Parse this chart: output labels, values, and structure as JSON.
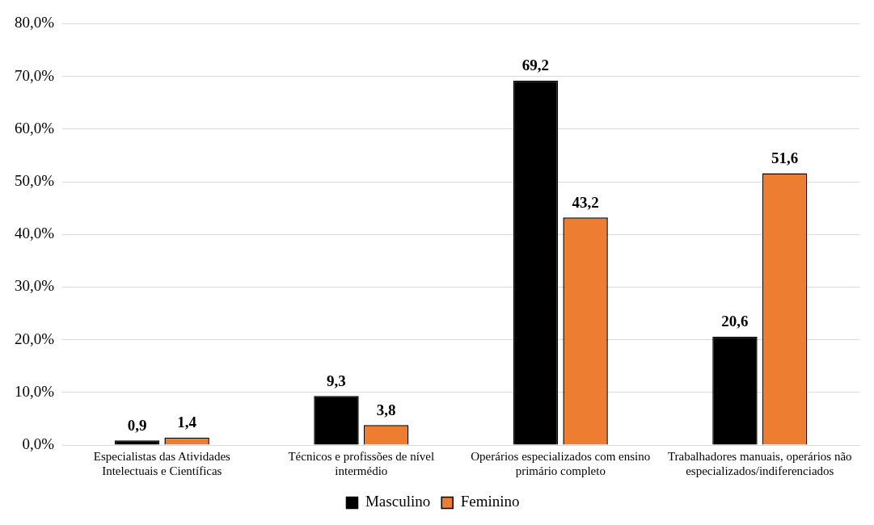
{
  "chart_data": {
    "type": "bar",
    "categories": [
      "Especialistas das Atividades Intelectuais e Científicas",
      "Técnicos e profissões de nível intermédio",
      "Operários especializados com ensino primário completo",
      "Trabalhadores manuais, operários não especializados/indiferenciados"
    ],
    "series": [
      {
        "name": "Masculino",
        "color": "#000000",
        "values": [
          0.9,
          9.3,
          69.2,
          20.6
        ],
        "value_labels": [
          "0,9",
          "9,3",
          "69,2",
          "20,6"
        ]
      },
      {
        "name": "Feminino",
        "color": "#ed7d31",
        "values": [
          1.4,
          3.8,
          43.2,
          51.6
        ],
        "value_labels": [
          "1,4",
          "3,8",
          "43,2",
          "51,6"
        ]
      }
    ],
    "ylim": [
      0,
      80
    ],
    "yticks": [
      {
        "value": 0,
        "label": "0,0%"
      },
      {
        "value": 10,
        "label": "10,0%"
      },
      {
        "value": 20,
        "label": "20,0%"
      },
      {
        "value": 30,
        "label": "30,0%"
      },
      {
        "value": 40,
        "label": "40,0%"
      },
      {
        "value": 50,
        "label": "50,0%"
      },
      {
        "value": 60,
        "label": "60,0%"
      },
      {
        "value": 70,
        "label": "70,0%"
      },
      {
        "value": 80,
        "label": "80,0%"
      }
    ],
    "grid": "y",
    "legend": "bottom"
  }
}
